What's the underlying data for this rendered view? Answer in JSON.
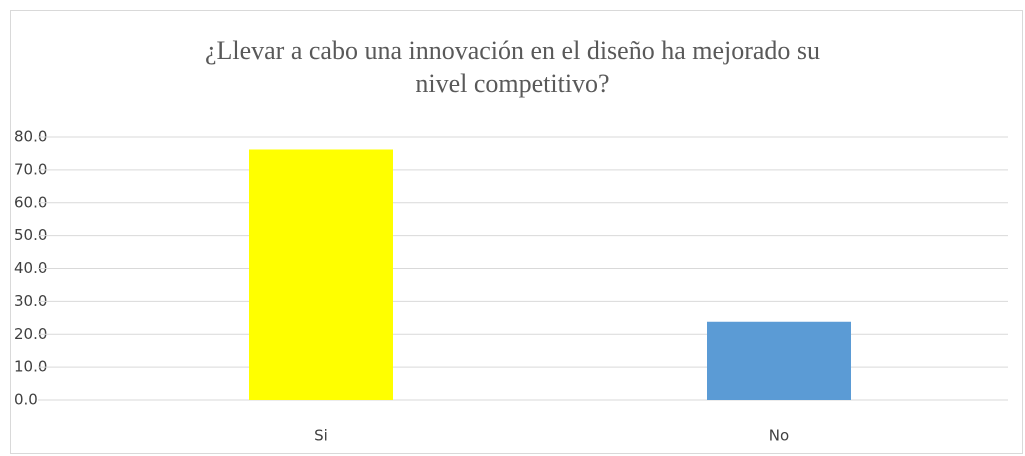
{
  "chart_data": {
    "type": "bar",
    "title": "¿Llevar a cabo una innovación en el diseño ha mejorado su nivel competitivo?",
    "categories": [
      "Si",
      "No"
    ],
    "values": [
      76.2,
      23.8
    ],
    "colors": [
      "#ffff00",
      "#5b9bd5"
    ],
    "ylim": [
      0,
      80
    ],
    "yticks": [
      {
        "value": 0,
        "label": "0.0"
      },
      {
        "value": 10,
        "label": "10.0"
      },
      {
        "value": 20,
        "label": "20.0"
      },
      {
        "value": 30,
        "label": "30.0"
      },
      {
        "value": 40,
        "label": "40.0"
      },
      {
        "value": 50,
        "label": "50.0"
      },
      {
        "value": 60,
        "label": "60.0"
      },
      {
        "value": 70,
        "label": "70.0"
      },
      {
        "value": 80,
        "label": "80.0"
      }
    ],
    "grid": true
  }
}
